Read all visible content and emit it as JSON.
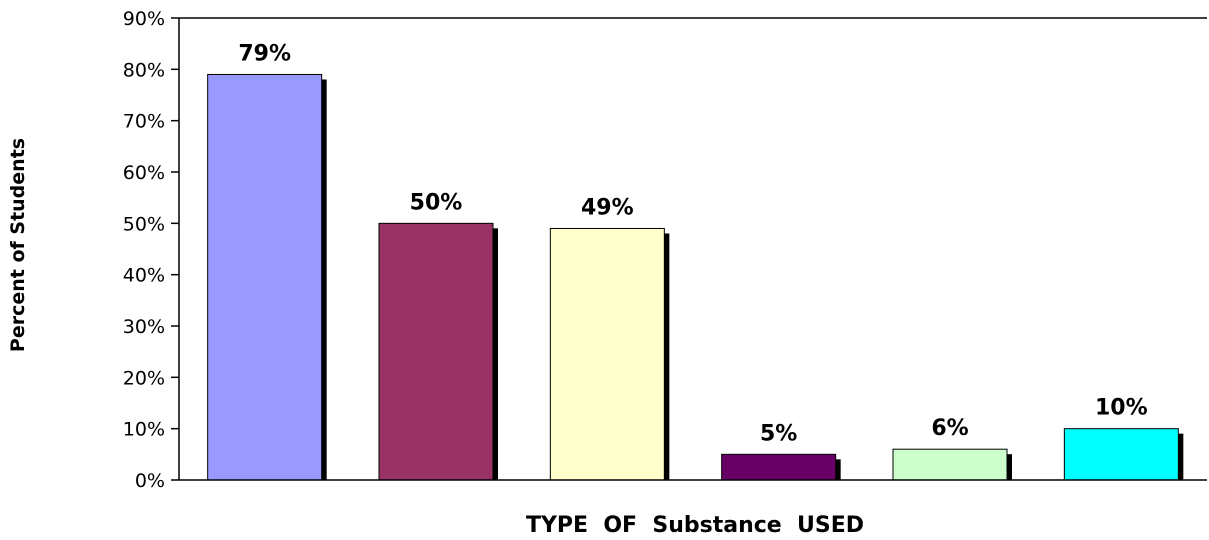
{
  "chart_data": {
    "type": "bar",
    "title": "",
    "xlabel": "TYPE  OF  Substance  USED",
    "ylabel": "Percent of Students",
    "categories": [
      "",
      "",
      "",
      "",
      "",
      ""
    ],
    "values": [
      79,
      50,
      49,
      5,
      6,
      10
    ],
    "data_labels": [
      "79%",
      "50%",
      "49%",
      "5%",
      "6%",
      "10%"
    ],
    "colors": [
      "#9999ff",
      "#993366",
      "#ffffcc",
      "#660066",
      "#ccffcc",
      "#00ffff"
    ],
    "ylim": [
      0,
      90
    ],
    "yticks": [
      0,
      10,
      20,
      30,
      40,
      50,
      60,
      70,
      80,
      90
    ],
    "ytick_labels": [
      "0%",
      "10%",
      "20%",
      "30%",
      "40%",
      "50%",
      "60%",
      "70%",
      "80%",
      "90%"
    ],
    "grid": false,
    "legend": "none"
  }
}
